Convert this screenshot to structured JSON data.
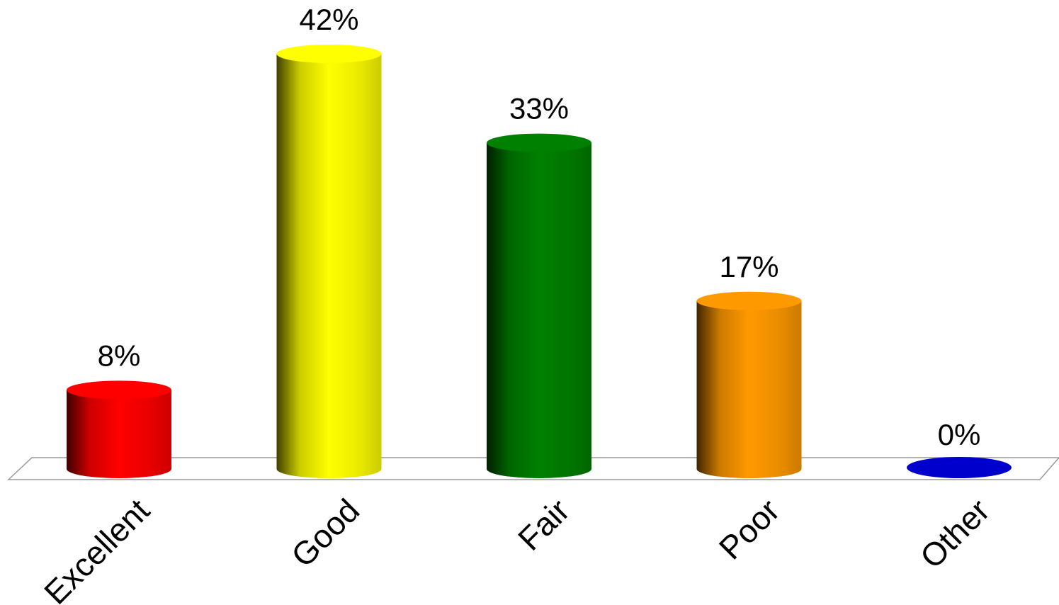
{
  "chart_data": {
    "type": "bar",
    "style": "3d-cylinder",
    "categories": [
      "Excellent",
      "Good",
      "Fair",
      "Poor",
      "Other"
    ],
    "values": [
      8,
      42,
      33,
      17,
      0
    ],
    "data_labels": [
      "8%",
      "42%",
      "33%",
      "17%",
      "0%"
    ],
    "colors": [
      "#ff0000",
      "#ffff00",
      "#008000",
      "#ff9900",
      "#0000cc"
    ],
    "ylim": [
      0,
      42
    ],
    "grid": false,
    "legend": "none"
  }
}
